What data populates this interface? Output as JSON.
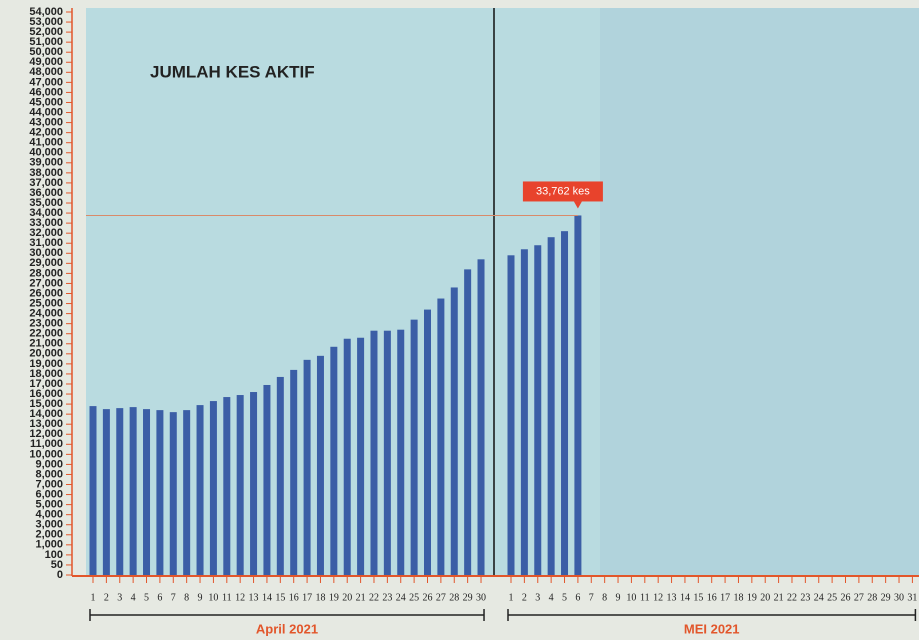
{
  "chart_data": {
    "type": "bar",
    "title": "JUMLAH KES AKTIF",
    "color": "#3b5ea6",
    "ylim": [
      0,
      54000
    ],
    "yticks": [
      0,
      50,
      100,
      {
        "value": 1000,
        "label": "1,000"
      },
      {
        "value": 2000,
        "label": "2,000"
      },
      {
        "value": 3000,
        "label": "3,000"
      },
      {
        "value": 4000,
        "label": "4,000"
      },
      {
        "value": 5000,
        "label": "5,000"
      },
      {
        "value": 6000,
        "label": "6,000"
      },
      {
        "value": 7000,
        "label": "7,000"
      },
      {
        "value": 8000,
        "label": "8,000"
      },
      {
        "value": 9000,
        "label": "9,000"
      },
      {
        "value": 10000,
        "label": "10,000"
      },
      {
        "value": 11000,
        "label": "11,000"
      },
      {
        "value": 12000,
        "label": "12,000"
      },
      {
        "value": 13000,
        "label": "13,000"
      },
      {
        "value": 14000,
        "label": "14,000"
      },
      {
        "value": 15000,
        "label": "15,000"
      },
      {
        "value": 16000,
        "label": "16,000"
      },
      {
        "value": 17000,
        "label": "17,000"
      },
      {
        "value": 18000,
        "label": "18,000"
      },
      {
        "value": 19000,
        "label": "19,000"
      },
      {
        "value": 20000,
        "label": "20,000"
      },
      {
        "value": 21000,
        "label": "21,000"
      },
      {
        "value": 22000,
        "label": "22,000"
      },
      {
        "value": 23000,
        "label": "23,000"
      },
      {
        "value": 24000,
        "label": "24,000"
      },
      {
        "value": 25000,
        "label": "25,000"
      },
      {
        "value": 26000,
        "label": "26,000"
      },
      {
        "value": 27000,
        "label": "27,000"
      },
      {
        "value": 28000,
        "label": "28,000"
      },
      {
        "value": 29000,
        "label": "29,000"
      },
      {
        "value": 30000,
        "label": "30,000"
      },
      {
        "value": 31000,
        "label": "31,000"
      },
      {
        "value": 32000,
        "label": "32,000"
      },
      {
        "value": 33000,
        "label": "33,000"
      },
      {
        "value": 34000,
        "label": "34,000"
      },
      {
        "value": 35000,
        "label": "35,000"
      },
      {
        "value": 36000,
        "label": "36,000"
      },
      {
        "value": 37000,
        "label": "37,000"
      },
      {
        "value": 38000,
        "label": "38,000"
      },
      {
        "value": 39000,
        "label": "39,000"
      },
      {
        "value": 40000,
        "label": "40,000"
      },
      {
        "value": 41000,
        "label": "41,000"
      },
      {
        "value": 42000,
        "label": "42,000"
      },
      {
        "value": 43000,
        "label": "43,000"
      },
      {
        "value": 44000,
        "label": "44,000"
      },
      {
        "value": 45000,
        "label": "45,000"
      },
      {
        "value": 46000,
        "label": "46,000"
      },
      {
        "value": 47000,
        "label": "47,000"
      },
      {
        "value": 48000,
        "label": "48,000"
      },
      {
        "value": 49000,
        "label": "49,000"
      },
      {
        "value": 50000,
        "label": "50,000"
      },
      {
        "value": 51000,
        "label": "51,000"
      },
      {
        "value": 52000,
        "label": "52,000"
      },
      {
        "value": 53000,
        "label": "53,000"
      },
      {
        "value": 54000,
        "label": "54,000"
      }
    ],
    "groups": [
      {
        "name": "April 2021",
        "categories": [
          "1",
          "2",
          "3",
          "4",
          "5",
          "6",
          "7",
          "8",
          "9",
          "10",
          "11",
          "12",
          "13",
          "14",
          "15",
          "16",
          "17",
          "18",
          "19",
          "20",
          "21",
          "22",
          "23",
          "24",
          "25",
          "26",
          "27",
          "28",
          "29",
          "30"
        ],
        "values": [
          14800,
          14500,
          14600,
          14700,
          14500,
          14400,
          14200,
          14400,
          14900,
          15300,
          15700,
          15900,
          16200,
          16900,
          17700,
          18400,
          19400,
          19800,
          20700,
          21500,
          21600,
          22300,
          22300,
          22400,
          23400,
          24400,
          25500,
          26600,
          28400,
          29400
        ]
      },
      {
        "name": "MEI 2021",
        "categories": [
          "1",
          "2",
          "3",
          "4",
          "5",
          "6",
          "7",
          "8",
          "9",
          "10",
          "11",
          "12",
          "13",
          "14",
          "15",
          "16",
          "17",
          "18",
          "19",
          "20",
          "21",
          "22",
          "23",
          "24",
          "25",
          "26",
          "27",
          "28",
          "29",
          "30",
          "31"
        ],
        "values": [
          29800,
          30400,
          30800,
          31600,
          32200,
          33762,
          null,
          null,
          null,
          null,
          null,
          null,
          null,
          null,
          null,
          null,
          null,
          null,
          null,
          null,
          null,
          null,
          null,
          null,
          null,
          null,
          null,
          null,
          null,
          null,
          null
        ],
        "value_labels": [
          null,
          null,
          null,
          null,
          null,
          "33,762 kes",
          null,
          null,
          null,
          null,
          null,
          null,
          null,
          null,
          null,
          null,
          null,
          null,
          null,
          null,
          null,
          null,
          null,
          null,
          null,
          null,
          null,
          null,
          null,
          null,
          null
        ]
      }
    ]
  }
}
